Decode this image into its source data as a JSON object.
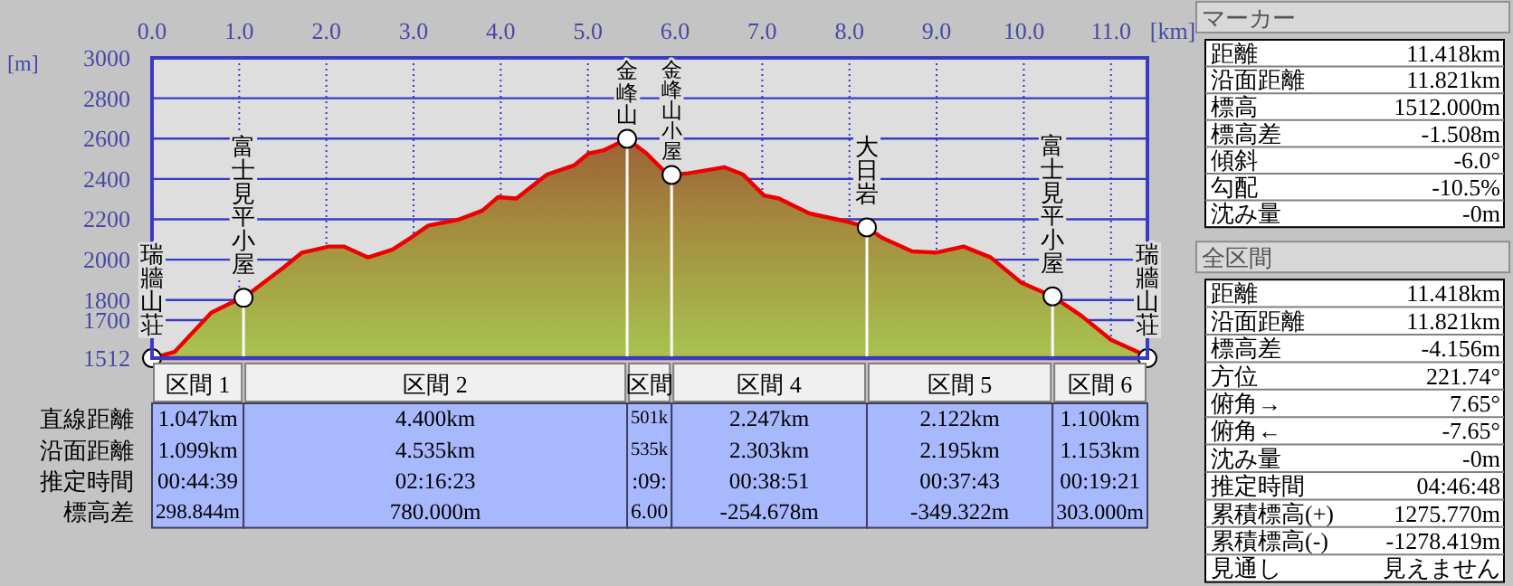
{
  "chart_data": [
    {
      "type": "area",
      "xlabel": "[km]",
      "ylabel": "[m]",
      "xlim": [
        0,
        11.418
      ],
      "ylim": [
        1512,
        3000
      ],
      "xticks": [
        {
          "value": 0,
          "label": "0.0"
        },
        {
          "value": 1,
          "label": "1.0"
        },
        {
          "value": 2,
          "label": "2.0"
        },
        {
          "value": 3,
          "label": "3.0"
        },
        {
          "value": 4,
          "label": "4.0"
        },
        {
          "value": 5,
          "label": "5.0"
        },
        {
          "value": 6,
          "label": "6.0"
        },
        {
          "value": 7,
          "label": "7.0"
        },
        {
          "value": 8,
          "label": "8.0"
        },
        {
          "value": 9,
          "label": "9.0"
        },
        {
          "value": 10,
          "label": "10.0"
        },
        {
          "value": 11,
          "label": "11.0"
        }
      ],
      "yticks": [
        1512,
        1700,
        1800,
        2000,
        2200,
        2400,
        2600,
        2800,
        3000
      ],
      "grid": true,
      "series": [
        {
          "type": "area",
          "color": "#ee0000",
          "x": [
            0,
            0.26,
            0.68,
            0.89,
            1.05,
            1.1,
            1.51,
            1.72,
            2.03,
            2.2,
            2.48,
            2.76,
            2.97,
            3.17,
            3.52,
            3.79,
            3.97,
            4.18,
            4.53,
            4.84,
            5.01,
            5.18,
            5.32,
            5.45,
            5.67,
            5.88,
            5.96,
            6.15,
            6.57,
            6.78,
            7.02,
            7.19,
            7.54,
            7.96,
            8.2,
            8.37,
            8.72,
            8.99,
            9.31,
            9.62,
            9.97,
            10.33,
            10.66,
            11.0,
            11.35,
            11.418
          ],
          "values": [
            1512,
            1543,
            1737,
            1782,
            1811,
            1827,
            1961,
            2035,
            2065,
            2065,
            2011,
            2050,
            2109,
            2169,
            2199,
            2243,
            2310,
            2303,
            2422,
            2467,
            2527,
            2542,
            2571,
            2599,
            2527,
            2437,
            2420,
            2428,
            2458,
            2422,
            2318,
            2303,
            2229,
            2190,
            2160,
            2109,
            2041,
            2035,
            2065,
            2011,
            1886,
            1818,
            1722,
            1603,
            1534,
            1512
          ]
        },
        {
          "type": "lollipop",
          "color": "#ffffff",
          "marker": "circle",
          "x": [
            0,
            1.05,
            5.45,
            5.96,
            8.2,
            10.33,
            11.418
          ],
          "values": [
            1512,
            1811,
            2599,
            2420,
            2160,
            1818,
            1512
          ]
        }
      ],
      "annotations": [
        {
          "text": "瑞牆山荘",
          "x": 0,
          "y": 1512
        },
        {
          "text": "富士見平小屋",
          "x": 1.05,
          "y": 1811
        },
        {
          "text": "金峰山",
          "x": 5.45,
          "y": 2599
        },
        {
          "text": "金峰山小屋",
          "x": 5.96,
          "y": 2420
        },
        {
          "text": "大日岩",
          "x": 8.2,
          "y": 2160
        },
        {
          "text": "富士見平小屋",
          "x": 10.33,
          "y": 1818
        },
        {
          "text": "瑞牆山荘",
          "x": 11.418,
          "y": 1512
        }
      ]
    },
    {
      "type": "other",
      "categories": [
        "区間 1",
        "区間 2",
        "区間",
        "区間 4",
        "区間 5",
        "区間 6"
      ],
      "y_categories": [
        "直線距離",
        "沿面距離",
        "推定時間",
        "標高差"
      ],
      "cell_labels": [
        [
          "1.047km",
          "4.400km",
          "501k",
          "2.247km",
          "2.122km",
          "1.100km"
        ],
        [
          "1.099km",
          "4.535km",
          "535k",
          "2.303km",
          "2.195km",
          "1.153km"
        ],
        [
          "00:44:39",
          "02:16:23",
          ":09:",
          "00:38:51",
          "00:37:43",
          "00:19:21"
        ],
        [
          "298.844m",
          "780.000m",
          "6.00",
          "-254.678m",
          "-349.322m",
          "303.000m"
        ]
      ]
    },
    {
      "type": "other",
      "title": "マーカー",
      "y_categories": [
        "距離",
        "沿面距離",
        "標高",
        "標高差",
        "傾斜",
        "勾配",
        "沈み量"
      ],
      "cell_labels": [
        [
          "11.418km"
        ],
        [
          "11.821km"
        ],
        [
          "1512.000m"
        ],
        [
          "-1.508m"
        ],
        [
          "-6.0°"
        ],
        [
          "-10.5%"
        ],
        [
          "-0m"
        ]
      ]
    },
    {
      "type": "other",
      "title": "全区間",
      "y_categories": [
        "距離",
        "沿面距離",
        "標高差",
        "方位",
        "俯角→",
        "俯角←",
        "沈み量",
        "推定時間",
        "累積標高(+)",
        "累積標高(-)",
        "見通し"
      ],
      "cell_labels": [
        [
          "11.418km"
        ],
        [
          "11.821km"
        ],
        [
          "-4.156m"
        ],
        [
          "221.74°"
        ],
        [
          "7.65°"
        ],
        [
          "-7.65°"
        ],
        [
          "-0m"
        ],
        [
          "04:46:48"
        ],
        [
          "1275.770m"
        ],
        [
          "-1278.419m"
        ],
        [
          "見えません"
        ]
      ]
    }
  ]
}
